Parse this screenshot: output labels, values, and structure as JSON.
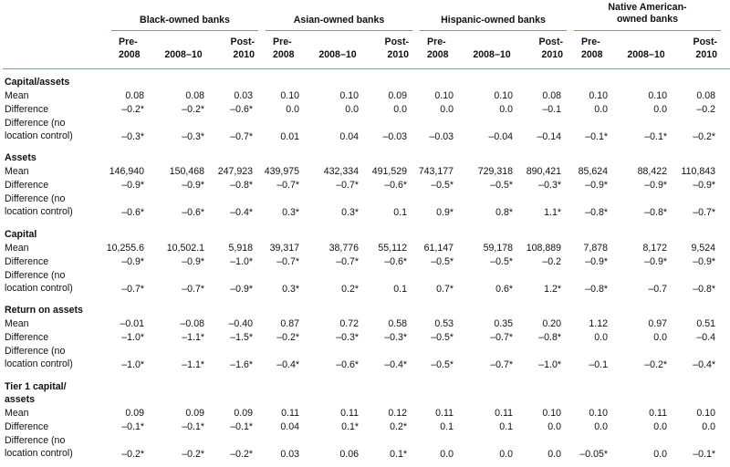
{
  "groups": [
    {
      "title": "Black-owned banks",
      "cols": [
        "Pre-\n2008",
        "2008–10",
        "Post-\n2010"
      ]
    },
    {
      "title": "Asian-owned banks",
      "cols": [
        "Pre-\n2008",
        "2008–10",
        "Post-\n2010"
      ]
    },
    {
      "title": "Hispanic-owned banks",
      "cols": [
        "Pre-\n2008",
        "2008–10",
        "Post-\n2010"
      ]
    },
    {
      "title": "Native American-\nowned banks",
      "cols": [
        "Pre-\n2008",
        "2008–10",
        "Post-\n2010"
      ]
    }
  ],
  "sections": [
    {
      "title": "Capital/assets",
      "rows": [
        {
          "label": "Mean",
          "values": [
            "0.08",
            "0.08",
            "0.03",
            "0.10",
            "0.10",
            "0.09",
            "0.10",
            "0.10",
            "0.08",
            "0.10",
            "0.10",
            "0.08"
          ]
        },
        {
          "label": "Difference",
          "values": [
            "–0.2*",
            "–0.2*",
            "–0.6*",
            "0.0",
            "0.0",
            "0.0",
            "0.0",
            "0.0",
            "–0.1",
            "0.0",
            "0.0",
            "–0.2"
          ]
        },
        {
          "label": "Difference (no\nlocation control)",
          "values": [
            "–0.3*",
            "–0.3*",
            "–0.7*",
            "0.01",
            "0.04",
            "–0.03",
            "–0.03",
            "–0.04",
            "–0.14",
            "–0.1*",
            "–0.1*",
            "–0.2*"
          ]
        }
      ]
    },
    {
      "title": "Assets",
      "rows": [
        {
          "label": "Mean",
          "values": [
            "146,940",
            "150,468",
            "247,923",
            "439,975",
            "432,334",
            "491,529",
            "743,177",
            "729,318",
            "890,421",
            "85,624",
            "88,422",
            "110,843"
          ]
        },
        {
          "label": "Difference",
          "values": [
            "–0.9*",
            "–0.9*",
            "–0.8*",
            "–0.7*",
            "–0.7*",
            "–0.6*",
            "–0.5*",
            "–0.5*",
            "–0.3*",
            "–0.9*",
            "–0.9*",
            "–0.9*"
          ]
        },
        {
          "label": "Difference (no\nlocation control)",
          "values": [
            "–0.6*",
            "–0.6*",
            "–0.4*",
            "0.3*",
            "0.3*",
            "0.1",
            "0.9*",
            "0.8*",
            "1.1*",
            "–0.8*",
            "–0.8*",
            "–0.7*"
          ]
        }
      ]
    },
    {
      "title": "Capital",
      "rows": [
        {
          "label": "Mean",
          "values": [
            "10,255.6",
            "10,502.1",
            "5,918",
            "39,317",
            "38,776",
            "55,112",
            "61,147",
            "59,178",
            "108,889",
            "7,878",
            "8,172",
            "9,524"
          ]
        },
        {
          "label": "Difference",
          "values": [
            "–0.9*",
            "–0.9*",
            "–1.0*",
            "–0.7*",
            "–0.7*",
            "–0.6*",
            "–0.5*",
            "–0.5*",
            "–0.2",
            "–0.9*",
            "–0.9*",
            "–0.9*"
          ]
        },
        {
          "label": "Difference (no\nlocation control)",
          "values": [
            "–0.7*",
            "–0.7*",
            "–0.9*",
            "0.3*",
            "0.2*",
            "0.1",
            "0.7*",
            "0.6*",
            "1.2*",
            "–0.8*",
            "–0.7",
            "–0.8*"
          ]
        }
      ]
    },
    {
      "title": "Return on assets",
      "rows": [
        {
          "label": "Mean",
          "values": [
            "–0.01",
            "–0.08",
            "–0.40",
            "0.87",
            "0.72",
            "0.58",
            "0.53",
            "0.35",
            "0.20",
            "1.12",
            "0.97",
            "0.51"
          ]
        },
        {
          "label": "Difference",
          "values": [
            "–1.0*",
            "–1.1*",
            "–1.5*",
            "–0.2*",
            "–0.3*",
            "–0.3*",
            "–0.5*",
            "–0.7*",
            "–0.8*",
            "0.0",
            "0.0",
            "–0.4"
          ]
        },
        {
          "label": "Difference (no\nlocation control)",
          "values": [
            "–1.0*",
            "–1.1*",
            "–1.6*",
            "–0.4*",
            "–0.6*",
            "–0.4*",
            "–0.5*",
            "–0.7*",
            "–1.0*",
            "–0.1",
            "–0.2*",
            "–0.4*"
          ]
        }
      ]
    },
    {
      "title": "Tier 1 capital/\nassets",
      "rows": [
        {
          "label": "Mean",
          "values": [
            "0.09",
            "0.09",
            "0.09",
            "0.11",
            "0.11",
            "0.12",
            "0.11",
            "0.11",
            "0.10",
            "0.10",
            "0.11",
            "0.10"
          ]
        },
        {
          "label": "Difference",
          "values": [
            "–0.1*",
            "–0.1*",
            "–0.1*",
            "0.04",
            "0.1*",
            "0.2*",
            "0.1",
            "0.1",
            "0.0",
            "0.0",
            "0.0",
            "0.0"
          ]
        },
        {
          "label": "Difference (no\nlocation control)",
          "values": [
            "–0.2*",
            "–0.2*",
            "–0.2*",
            "0.03",
            "0.06",
            "0.1*",
            "0.0",
            "0.0",
            "0.0",
            "–0.05*",
            "0.0",
            "–0.1*"
          ]
        }
      ]
    }
  ]
}
